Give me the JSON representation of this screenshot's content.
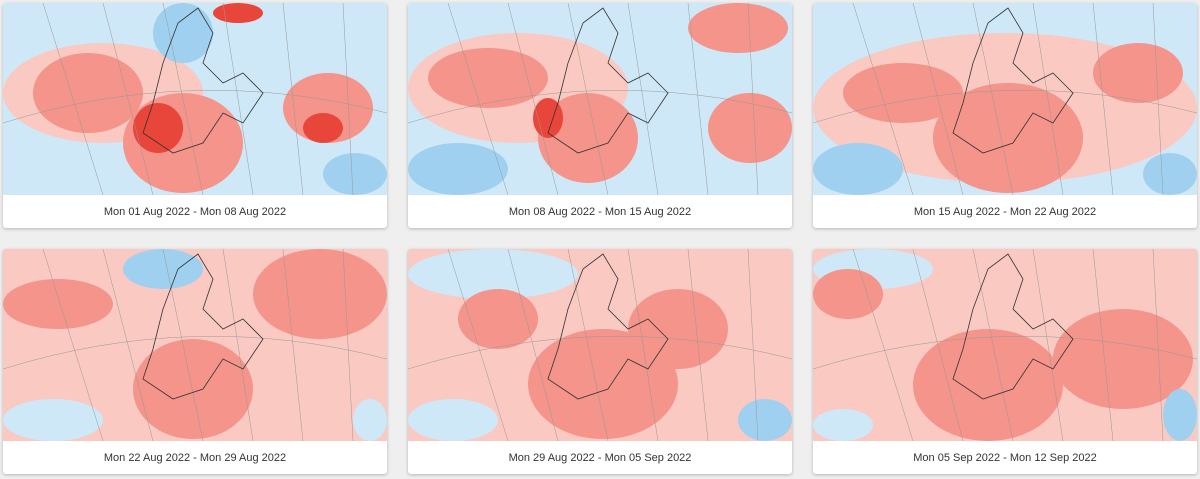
{
  "cards": [
    {
      "caption": "Mon 01 Aug 2022 - Mon 08 Aug 2022"
    },
    {
      "caption": "Mon 08 Aug 2022 - Mon 15 Aug 2022"
    },
    {
      "caption": "Mon 15 Aug 2022 - Mon 22 Aug 2022"
    },
    {
      "caption": "Mon 22 Aug 2022 - Mon 29 Aug 2022"
    },
    {
      "caption": "Mon 29 Aug 2022 - Mon 05 Sep 2022"
    },
    {
      "caption": "Mon 05 Sep 2022 - Mon 12 Sep 2022"
    }
  ],
  "colors": {
    "warm_light": "#f9c9c2",
    "warm": "#f4948a",
    "warm_strong": "#e8463a",
    "cool_light": "#cfe8f7",
    "cool": "#9fd0f0",
    "cool_strong": "#3da5e8",
    "background": "#efefef"
  }
}
